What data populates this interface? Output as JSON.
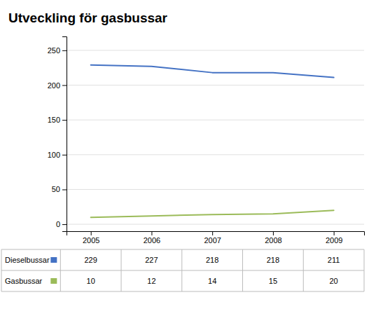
{
  "chart_data": {
    "type": "line",
    "title": "Utveckling för gasbussar",
    "x": [
      2005,
      2006,
      2007,
      2008,
      2009
    ],
    "series": [
      {
        "name": "Dieselbussar",
        "color": "#4472C4",
        "values": [
          229,
          227,
          218,
          218,
          211
        ]
      },
      {
        "name": "Gasbussar",
        "color": "#9BBB59",
        "values": [
          10,
          12,
          14,
          15,
          20
        ]
      }
    ],
    "xlim": [
      2004.6,
      2009.5
    ],
    "xticks": [
      2005,
      2006,
      2007,
      2008,
      2009
    ],
    "ylim": [
      -10,
      270
    ],
    "yticks": [
      0,
      50,
      100,
      150,
      200,
      250
    ],
    "grid": true
  }
}
